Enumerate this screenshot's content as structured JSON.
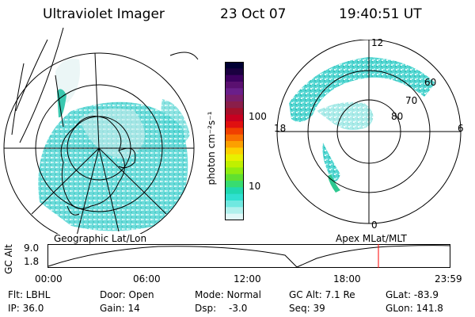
{
  "header": {
    "title": "Ultraviolet Imager",
    "date": "23 Oct 07",
    "time": "19:40:51 UT"
  },
  "left_map": {
    "caption": "Geographic Lat/Lon"
  },
  "right_map": {
    "caption": "Apex MLat/MLT",
    "clock_labels": {
      "top": "12",
      "left": "18",
      "right": "6",
      "bottom": "0"
    },
    "lat_labels": [
      "60",
      "70",
      "80"
    ]
  },
  "colorbar": {
    "unit_label": "photon cm⁻²s⁻¹",
    "tick_labels": [
      "100",
      "10"
    ],
    "colors": [
      "#000033",
      "#1a0040",
      "#3d0060",
      "#5a1070",
      "#6a1f8a",
      "#7a1e6a",
      "#8a1e4a",
      "#a5102a",
      "#c80020",
      "#e01010",
      "#f04000",
      "#f87000",
      "#fca000",
      "#fcd000",
      "#e8f000",
      "#c0f000",
      "#90ec10",
      "#60e030",
      "#38dc70",
      "#20d8b0",
      "#30e0d0",
      "#70e8e0",
      "#b0f0ec",
      "#e0f8f8"
    ]
  },
  "altitude_plot": {
    "y_axis_label": "GC Alt",
    "y_ticks": [
      "9.0",
      "1.8"
    ],
    "x_ticks": [
      "00:00",
      "06:00",
      "12:00",
      "18:00",
      "23:59"
    ],
    "current_time_color": "#ff0000"
  },
  "info": {
    "filter": "Flt: LBHL",
    "door": "Door: Open",
    "mode": "Mode: Normal",
    "gc_alt": "GC Alt: 7.1 Re",
    "glat": "GLat: -83.9",
    "ip": "IP: 36.0",
    "gain": "Gain: 14",
    "dsp_label": "Dsp:",
    "dsp_value": "-3.0",
    "seq": "Seq: 39",
    "glon": "GLon: 141.8"
  }
}
